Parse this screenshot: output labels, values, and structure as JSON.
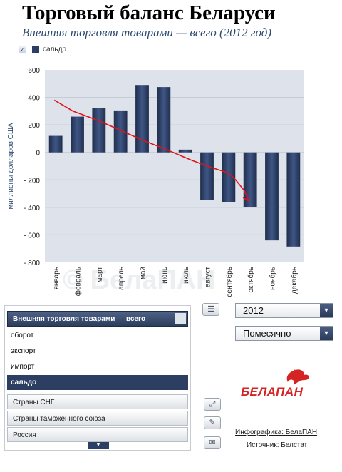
{
  "header": {
    "title": "Торговый баланс Беларуси",
    "subtitle": "Внешняя торговля товарами — всего (2012 год)"
  },
  "legend": {
    "checkbox_checked": true,
    "label": "сальдо",
    "color": "#2c3f63"
  },
  "watermark": "© БелаПАН",
  "chart_data": {
    "type": "bar",
    "title": "",
    "ylabel": "миллионы долларов США",
    "xlabel": "",
    "ylim": [
      -800,
      600
    ],
    "yticks": [
      600,
      400,
      200,
      0,
      -200,
      -400,
      -600,
      -800
    ],
    "ytick_labels": [
      "600",
      "400",
      "200",
      "0",
      "- 200",
      "- 400",
      "- 600",
      "- 800"
    ],
    "categories": [
      "январь",
      "февраль",
      "март",
      "апрель",
      "май",
      "июнь",
      "июль",
      "август",
      "сентябрь",
      "октябрь",
      "ноябрь",
      "декабрь"
    ],
    "series": [
      {
        "values": [
          120,
          260,
          325,
          305,
          490,
          475,
          20,
          -345,
          -360,
          -400,
          -640,
          -685
        ]
      }
    ],
    "bar_color": "#2c3f63",
    "plot_background": "#dee2ea",
    "grid": true,
    "annotation_color": "#e0141a"
  },
  "sidebar": {
    "dropdown_header": "Внешняя торговля товарами — всего",
    "options": [
      {
        "label": "оборот",
        "selected": false
      },
      {
        "label": "экспорт",
        "selected": false
      },
      {
        "label": "импорт",
        "selected": false
      },
      {
        "label": "сальдо",
        "selected": true
      }
    ],
    "groups": [
      "Страны СНГ",
      "Страны таможенного союза",
      "Россия"
    ]
  },
  "controls": {
    "year": "2012",
    "period": "Помесячно"
  },
  "branding": {
    "logo_text": "БЕЛАПАН",
    "logo_color": "#d42424",
    "infographic_link": "Инфографика: БелаПАН",
    "source_link": "Источник: Белстат"
  },
  "icons": {
    "table": "table-icon",
    "fullscreen": "expand-icon",
    "comment": "comment-icon",
    "speech": "speech-icon"
  }
}
